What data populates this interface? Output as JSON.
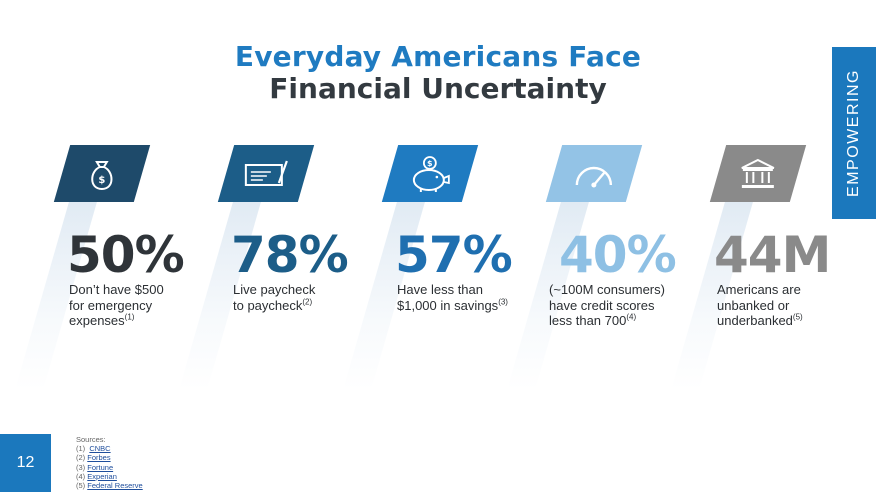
{
  "title": {
    "line1": "Everyday Americans Face",
    "line2": "Financial Uncertainty"
  },
  "side_tab": "EMPOWERING",
  "stats": [
    {
      "value": "50%",
      "desc_lines": [
        "Don’t have $500",
        "for emergency",
        "expenses"
      ],
      "note": "(1)",
      "icon": "money-bag-icon",
      "badge_color": "#1e4a6a",
      "value_color": "#2f3439"
    },
    {
      "value": "78%",
      "desc_lines": [
        "Live paycheck",
        "to paycheck"
      ],
      "note": "(2)",
      "icon": "check-icon",
      "badge_color": "#1c5d88",
      "value_color": "#1c5d88"
    },
    {
      "value": "57%",
      "desc_lines": [
        "Have less than",
        "$1,000 in savings"
      ],
      "note": "(3)",
      "icon": "piggy-bank-icon",
      "badge_color": "#1f7bc1",
      "value_color": "#1f6fb0"
    },
    {
      "value": "40%",
      "desc_lines": [
        "(~100M consumers)",
        "have credit scores",
        "less than 700"
      ],
      "note": "(4)",
      "icon": "gauge-icon",
      "badge_color": "#93c3e6",
      "value_color": "#8ec0e4"
    },
    {
      "value": "44M",
      "desc_lines": [
        "Americans are",
        "unbanked or",
        "underbanked"
      ],
      "note": "(5)",
      "icon": "bank-icon",
      "badge_color": "#8a8a8a",
      "value_color": "#8a8a8a"
    }
  ],
  "page_number": "12",
  "sources": {
    "heading": "Sources:",
    "items": [
      {
        "num": "(1)",
        "label": "CNBC"
      },
      {
        "num": "(2)",
        "label": "Forbes"
      },
      {
        "num": "(3)",
        "label": "Fortune"
      },
      {
        "num": "(4)",
        "label": "Experian"
      },
      {
        "num": "(5)",
        "label": "Federal Reserve"
      }
    ]
  }
}
